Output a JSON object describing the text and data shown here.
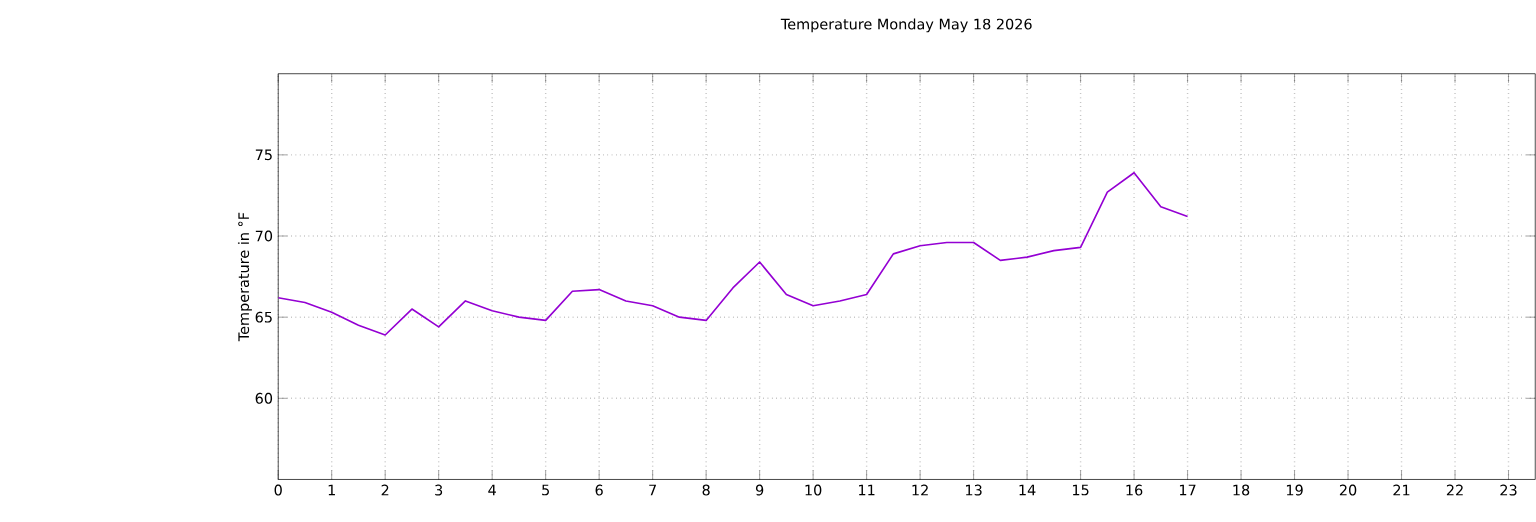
{
  "chart_data": {
    "type": "line",
    "title": "Temperature Monday May 18 2026",
    "ylabel": "Temperature in °F",
    "x": [
      0,
      0.5,
      1,
      1.5,
      2,
      2.5,
      3,
      3.5,
      4,
      4.5,
      5,
      5.5,
      6,
      6.5,
      7,
      7.5,
      8,
      8.5,
      9,
      9.5,
      10,
      10.5,
      11,
      11.5,
      12,
      12.5,
      13,
      13.5,
      14,
      14.5,
      15,
      15.5,
      16,
      16.5,
      17
    ],
    "series": [
      {
        "color": "#9400d3",
        "values": [
          66.2,
          65.9,
          65.3,
          64.5,
          63.9,
          65.5,
          64.4,
          66.0,
          65.4,
          65.0,
          64.8,
          66.6,
          66.7,
          66.0,
          65.7,
          65.0,
          64.8,
          66.8,
          68.4,
          66.4,
          65.7,
          66.0,
          66.4,
          68.9,
          69.4,
          69.6,
          69.6,
          68.5,
          68.7,
          69.1,
          69.3,
          72.7,
          73.9,
          71.8,
          71.2
        ]
      }
    ],
    "xlim": [
      0,
      23.5
    ],
    "ylim": [
      55,
      80
    ],
    "xticks": [
      0,
      1,
      2,
      3,
      4,
      5,
      6,
      7,
      8,
      9,
      10,
      11,
      12,
      13,
      14,
      15,
      16,
      17,
      18,
      19,
      20,
      21,
      22,
      23
    ],
    "yticks": [
      60,
      65,
      70,
      75
    ],
    "grid": true,
    "marker": "none",
    "line_style": "solid"
  }
}
